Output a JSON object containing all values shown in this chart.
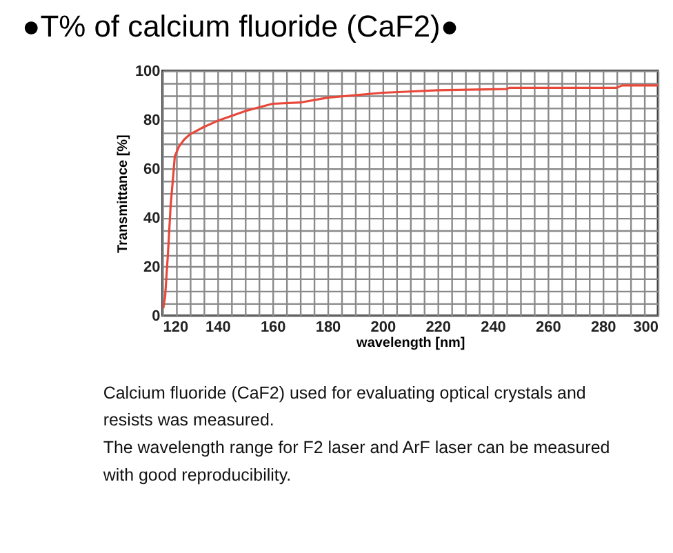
{
  "chart_data": {
    "type": "line",
    "title": "●T% of calcium fluoride (CaF2)●",
    "xlabel": "wavelength [nm]",
    "ylabel": "Transmittance [%]",
    "x": [
      120.3,
      121,
      122,
      123,
      124,
      124.5,
      126,
      128,
      130,
      135,
      140,
      145,
      150,
      155,
      160,
      170,
      180,
      190,
      200,
      210,
      220,
      245,
      246,
      285,
      287,
      300
    ],
    "series": [
      {
        "color": "#e8483a",
        "values": [
          3,
          8,
          25,
          45,
          58,
          65,
          69,
          72,
          74,
          77,
          79.5,
          81.5,
          83.5,
          85,
          86.5,
          87,
          89,
          90,
          91,
          91.5,
          92,
          92.5,
          93,
          93,
          94,
          94
        ]
      }
    ],
    "xlim": [
      120,
      300
    ],
    "ylim": [
      0,
      100
    ],
    "xticks": [
      120,
      {
        "value": 125,
        "label": null
      },
      {
        "value": 130,
        "label": null
      },
      {
        "value": 135,
        "label": null
      },
      140,
      {
        "value": 145,
        "label": null
      },
      {
        "value": 150,
        "label": null
      },
      {
        "value": 155,
        "label": null
      },
      160,
      {
        "value": 165,
        "label": null
      },
      {
        "value": 170,
        "label": null
      },
      {
        "value": 175,
        "label": null
      },
      180,
      {
        "value": 185,
        "label": null
      },
      {
        "value": 190,
        "label": null
      },
      {
        "value": 195,
        "label": null
      },
      200,
      {
        "value": 205,
        "label": null
      },
      {
        "value": 210,
        "label": null
      },
      {
        "value": 215,
        "label": null
      },
      220,
      {
        "value": 225,
        "label": null
      },
      {
        "value": 230,
        "label": null
      },
      {
        "value": 235,
        "label": null
      },
      240,
      {
        "value": 245,
        "label": null
      },
      {
        "value": 250,
        "label": null
      },
      {
        "value": 255,
        "label": null
      },
      260,
      {
        "value": 265,
        "label": null
      },
      {
        "value": 270,
        "label": null
      },
      {
        "value": 275,
        "label": null
      },
      280,
      {
        "value": 285,
        "label": null
      },
      {
        "value": 290,
        "label": null
      },
      {
        "value": 295,
        "label": null
      },
      300
    ],
    "yticks": [
      0,
      {
        "value": 5,
        "label": null
      },
      {
        "value": 10,
        "label": null
      },
      {
        "value": 15,
        "label": null
      },
      20,
      {
        "value": 25,
        "label": null
      },
      {
        "value": 30,
        "label": null
      },
      {
        "value": 35,
        "label": null
      },
      40,
      {
        "value": 45,
        "label": null
      },
      {
        "value": 50,
        "label": null
      },
      {
        "value": 55,
        "label": null
      },
      60,
      {
        "value": 65,
        "label": null
      },
      {
        "value": 70,
        "label": null
      },
      {
        "value": 75,
        "label": null
      },
      80,
      {
        "value": 85,
        "label": null
      },
      {
        "value": 90,
        "label": null
      },
      {
        "value": 95,
        "label": null
      },
      100
    ],
    "grid": true,
    "marker": "none",
    "line_style": "solid",
    "annotations": [
      "Calcium fluoride (CaF2) used for evaluating optical crystals and resists was measured.",
      "The wavelength range for F2 laser and ArF laser can be measured with good reproducibility."
    ]
  }
}
